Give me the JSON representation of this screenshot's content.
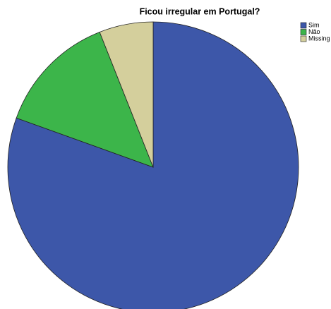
{
  "chart_data": {
    "type": "pie",
    "title": "Ficou irregular em Portugal?",
    "categories": [
      "Sim",
      "Não",
      "Missing"
    ],
    "values": [
      80.5,
      13.5,
      6
    ],
    "colors": [
      "#3d57a9",
      "#3cb54a",
      "#d4cf9c"
    ],
    "legend": "top-right"
  }
}
